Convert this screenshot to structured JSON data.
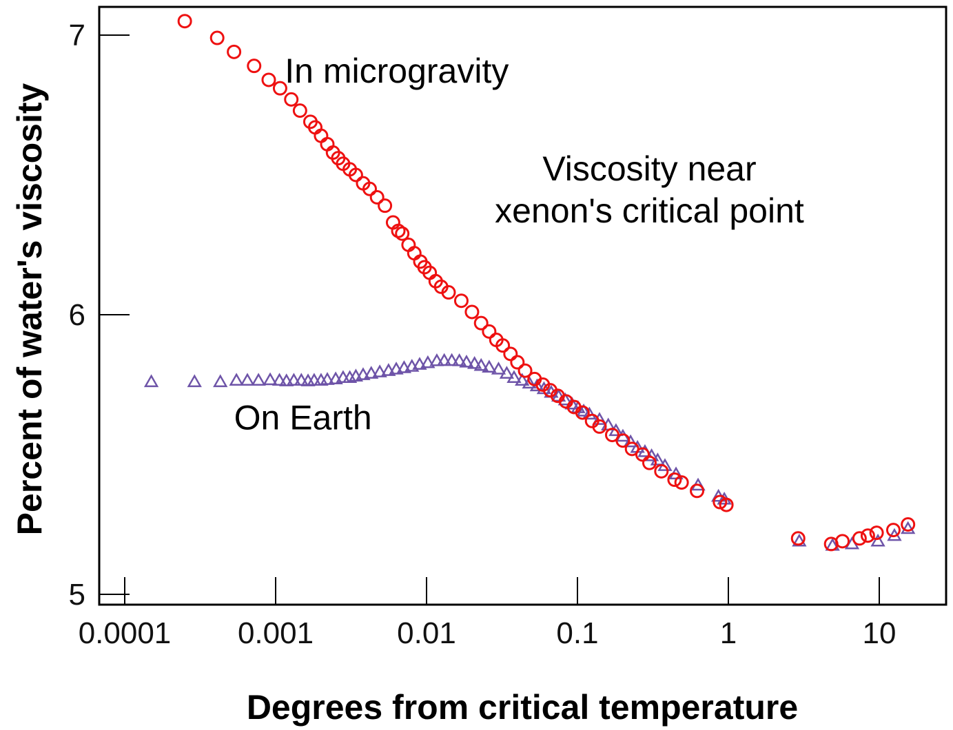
{
  "chart_data": {
    "type": "scatter",
    "title": "",
    "xlabel": "Degrees from critical temperature",
    "ylabel": "Percent of water's viscosity",
    "x_scale": "log",
    "xlim": [
      6.6e-05,
      25
    ],
    "ylim": [
      5,
      7.1
    ],
    "x_ticks": [
      {
        "value": 0.0001,
        "label": "0.0001"
      },
      {
        "value": 0.001,
        "label": "0.001"
      },
      {
        "value": 0.01,
        "label": "0.01"
      },
      {
        "value": 0.1,
        "label": "0.1"
      },
      {
        "value": 1,
        "label": "1"
      },
      {
        "value": 10,
        "label": "10"
      }
    ],
    "y_ticks": [
      {
        "value": 5,
        "label": "5"
      },
      {
        "value": 6,
        "label": "6"
      },
      {
        "value": 7,
        "label": "7"
      }
    ],
    "grid": false,
    "annotations": [
      {
        "text": "In microgravity",
        "x": 0.00115,
        "y": 6.83,
        "anchor": "start",
        "lines": [
          "In microgravity"
        ]
      },
      {
        "text": "Viscosity near xenon's critical point",
        "x": 0.3,
        "y": 6.48,
        "anchor": "middle",
        "lines": [
          "Viscosity near",
          "xenon's critical point"
        ]
      },
      {
        "text": "On Earth",
        "x": 0.00053,
        "y": 5.59,
        "anchor": "start",
        "lines": [
          "On Earth"
        ]
      }
    ],
    "series": [
      {
        "name": "In microgravity",
        "marker": "circle",
        "color": "#ee1111",
        "points": [
          [
            0.00025,
            7.05
          ],
          [
            0.00041,
            6.99
          ],
          [
            0.00053,
            6.94
          ],
          [
            0.00072,
            6.89
          ],
          [
            0.0009,
            6.84
          ],
          [
            0.00107,
            6.81
          ],
          [
            0.00127,
            6.77
          ],
          [
            0.00145,
            6.73
          ],
          [
            0.0017,
            6.69
          ],
          [
            0.00183,
            6.67
          ],
          [
            0.002,
            6.64
          ],
          [
            0.0022,
            6.61
          ],
          [
            0.0024,
            6.58
          ],
          [
            0.0026,
            6.56
          ],
          [
            0.0028,
            6.54
          ],
          [
            0.0031,
            6.52
          ],
          [
            0.0034,
            6.5
          ],
          [
            0.0038,
            6.47
          ],
          [
            0.0042,
            6.45
          ],
          [
            0.0047,
            6.42
          ],
          [
            0.0053,
            6.39
          ],
          [
            0.006,
            6.33
          ],
          [
            0.0065,
            6.3
          ],
          [
            0.0069,
            6.29
          ],
          [
            0.0076,
            6.25
          ],
          [
            0.0083,
            6.22
          ],
          [
            0.0091,
            6.19
          ],
          [
            0.0097,
            6.17
          ],
          [
            0.0105,
            6.15
          ],
          [
            0.0115,
            6.12
          ],
          [
            0.0125,
            6.1
          ],
          [
            0.014,
            6.08
          ],
          [
            0.017,
            6.05
          ],
          [
            0.02,
            6.01
          ],
          [
            0.023,
            5.97
          ],
          [
            0.026,
            5.94
          ],
          [
            0.029,
            5.91
          ],
          [
            0.032,
            5.89
          ],
          [
            0.036,
            5.86
          ],
          [
            0.04,
            5.83
          ],
          [
            0.045,
            5.8
          ],
          [
            0.052,
            5.77
          ],
          [
            0.059,
            5.75
          ],
          [
            0.066,
            5.73
          ],
          [
            0.074,
            5.71
          ],
          [
            0.084,
            5.69
          ],
          [
            0.095,
            5.67
          ],
          [
            0.108,
            5.65
          ],
          [
            0.125,
            5.62
          ],
          [
            0.14,
            5.6
          ],
          [
            0.17,
            5.57
          ],
          [
            0.2,
            5.55
          ],
          [
            0.23,
            5.52
          ],
          [
            0.27,
            5.5
          ],
          [
            0.3,
            5.47
          ],
          [
            0.36,
            5.44
          ],
          [
            0.44,
            5.41
          ],
          [
            0.49,
            5.4
          ],
          [
            0.62,
            5.37
          ],
          [
            0.88,
            5.33
          ],
          [
            0.97,
            5.32
          ],
          [
            2.9,
            5.2
          ],
          [
            4.8,
            5.18
          ],
          [
            5.7,
            5.19
          ],
          [
            7.4,
            5.2
          ],
          [
            8.4,
            5.21
          ],
          [
            9.6,
            5.22
          ],
          [
            12.4,
            5.23
          ],
          [
            15.5,
            5.25
          ]
        ]
      },
      {
        "name": "On Earth",
        "marker": "triangle",
        "color": "#6e54a8",
        "points": [
          [
            0.00015,
            5.76
          ],
          [
            0.00029,
            5.76
          ],
          [
            0.00043,
            5.76
          ],
          [
            0.00055,
            5.765
          ],
          [
            0.00065,
            5.765
          ],
          [
            0.00077,
            5.765
          ],
          [
            0.00092,
            5.767
          ],
          [
            0.00106,
            5.765
          ],
          [
            0.00118,
            5.763
          ],
          [
            0.00132,
            5.765
          ],
          [
            0.00148,
            5.765
          ],
          [
            0.00164,
            5.763
          ],
          [
            0.0018,
            5.765
          ],
          [
            0.002,
            5.765
          ],
          [
            0.0022,
            5.768
          ],
          [
            0.0025,
            5.77
          ],
          [
            0.0028,
            5.775
          ],
          [
            0.0031,
            5.775
          ],
          [
            0.0034,
            5.78
          ],
          [
            0.0038,
            5.785
          ],
          [
            0.0043,
            5.79
          ],
          [
            0.0049,
            5.795
          ],
          [
            0.0056,
            5.8
          ],
          [
            0.0063,
            5.805
          ],
          [
            0.0071,
            5.81
          ],
          [
            0.008,
            5.815
          ],
          [
            0.009,
            5.822
          ],
          [
            0.0102,
            5.828
          ],
          [
            0.0117,
            5.835
          ],
          [
            0.0131,
            5.836
          ],
          [
            0.0147,
            5.836
          ],
          [
            0.0165,
            5.835
          ],
          [
            0.0184,
            5.83
          ],
          [
            0.0208,
            5.825
          ],
          [
            0.023,
            5.818
          ],
          [
            0.026,
            5.812
          ],
          [
            0.03,
            5.805
          ],
          [
            0.034,
            5.79
          ],
          [
            0.038,
            5.775
          ],
          [
            0.043,
            5.765
          ],
          [
            0.048,
            5.755
          ],
          [
            0.054,
            5.745
          ],
          [
            0.06,
            5.735
          ],
          [
            0.067,
            5.722
          ],
          [
            0.075,
            5.708
          ],
          [
            0.083,
            5.695
          ],
          [
            0.092,
            5.68
          ],
          [
            0.101,
            5.667
          ],
          [
            0.11,
            5.655
          ],
          [
            0.12,
            5.644
          ],
          [
            0.14,
            5.625
          ],
          [
            0.16,
            5.605
          ],
          [
            0.18,
            5.585
          ],
          [
            0.2,
            5.565
          ],
          [
            0.225,
            5.545
          ],
          [
            0.25,
            5.525
          ],
          [
            0.28,
            5.51
          ],
          [
            0.31,
            5.495
          ],
          [
            0.34,
            5.48
          ],
          [
            0.38,
            5.46
          ],
          [
            0.45,
            5.43
          ],
          [
            0.63,
            5.39
          ],
          [
            0.86,
            5.35
          ],
          [
            0.94,
            5.34
          ],
          [
            2.95,
            5.19
          ],
          [
            4.9,
            5.175
          ],
          [
            6.6,
            5.18
          ],
          [
            9.8,
            5.19
          ],
          [
            12.6,
            5.21
          ],
          [
            15.5,
            5.235
          ]
        ]
      }
    ]
  },
  "colors": {
    "axis": "#000000",
    "circle": "#ee1111",
    "triangle": "#6e54a8"
  }
}
